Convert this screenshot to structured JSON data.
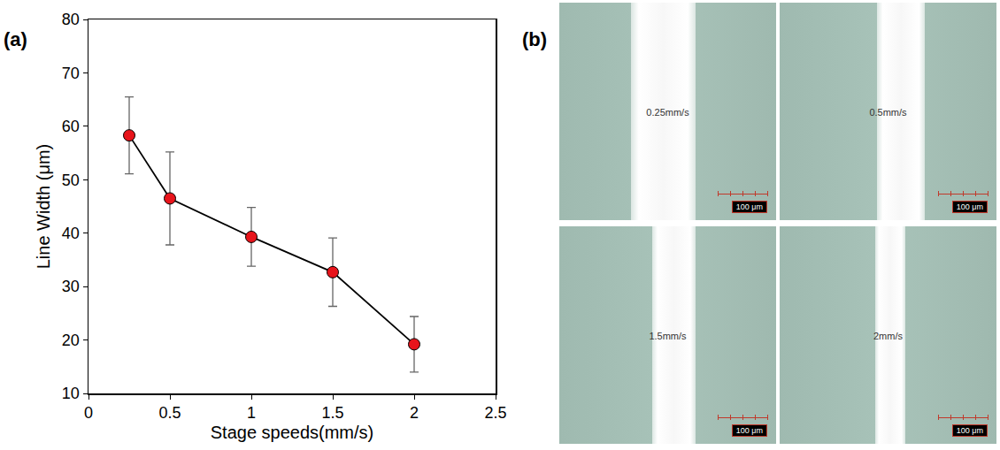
{
  "chart_data": {
    "type": "line",
    "panel_label": "(a)",
    "x_label": "Stage speeds(mm/s)",
    "y_label": "Line Width (μm)",
    "x": [
      0.25,
      0.5,
      1,
      1.5,
      2
    ],
    "values": [
      58.3,
      46.5,
      39.3,
      32.7,
      19.2
    ],
    "errors": [
      7.2,
      8.7,
      5.5,
      6.4,
      5.2
    ],
    "color": "#e8141b",
    "marker": "circle",
    "line_style": "solid",
    "xlim": [
      0,
      2.5
    ],
    "xticks": [
      0,
      0.5,
      1,
      1.5,
      2,
      2.5
    ],
    "ylim": [
      10,
      80
    ],
    "yticks": [
      10,
      20,
      30,
      40,
      50,
      60,
      70,
      80
    ],
    "grid": false
  },
  "micrographs": {
    "panel_label": "(b)",
    "images": [
      {
        "label": "0.25mm/s",
        "scale_bar": "100 μm"
      },
      {
        "label": "0.5mm/s",
        "scale_bar": "100 μm"
      },
      {
        "label": "1.5mm/s",
        "scale_bar": "100 μm"
      },
      {
        "label": "2mm/s",
        "scale_bar": "100 μm"
      }
    ]
  }
}
